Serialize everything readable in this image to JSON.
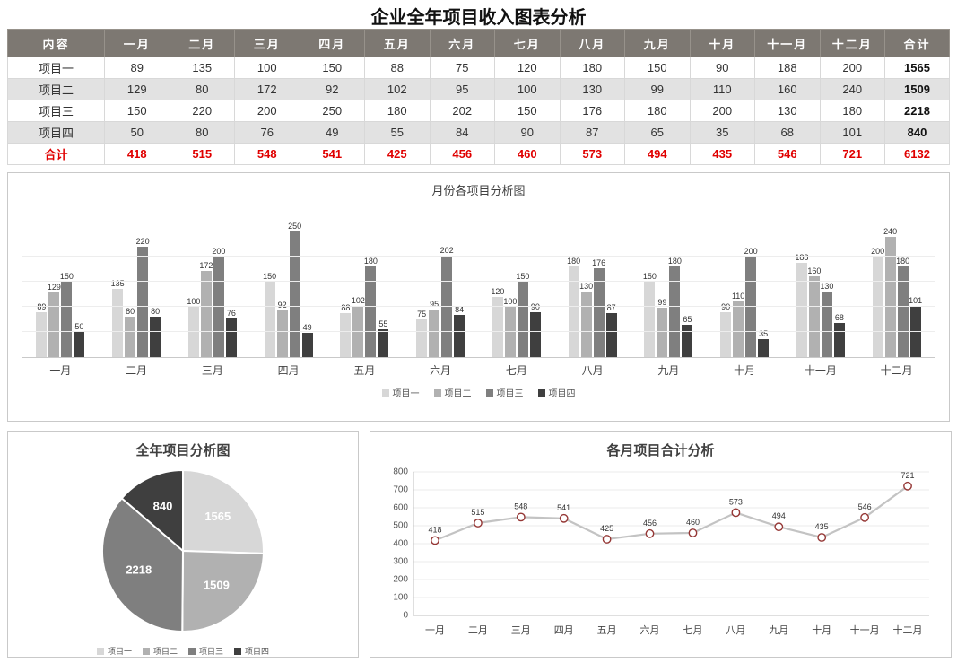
{
  "page_title": "企业全年项目收入图表分析",
  "table": {
    "headers": [
      "内容",
      "一月",
      "二月",
      "三月",
      "四月",
      "五月",
      "六月",
      "七月",
      "八月",
      "九月",
      "十月",
      "十一月",
      "十二月",
      "合计"
    ],
    "rows": [
      {
        "label": "项目一",
        "values": [
          89,
          135,
          100,
          150,
          88,
          75,
          120,
          180,
          150,
          90,
          188,
          200
        ],
        "total": 1565
      },
      {
        "label": "项目二",
        "values": [
          129,
          80,
          172,
          92,
          102,
          95,
          100,
          130,
          99,
          110,
          160,
          240
        ],
        "total": 1509
      },
      {
        "label": "项目三",
        "values": [
          150,
          220,
          200,
          250,
          180,
          202,
          150,
          176,
          180,
          200,
          130,
          180
        ],
        "total": 2218
      },
      {
        "label": "项目四",
        "values": [
          50,
          80,
          76,
          49,
          55,
          84,
          90,
          87,
          65,
          35,
          68,
          101
        ],
        "total": 840
      }
    ],
    "total_row": {
      "label": "合计",
      "values": [
        418,
        515,
        548,
        541,
        425,
        456,
        460,
        573,
        494,
        435,
        546,
        721
      ],
      "total": 6132
    }
  },
  "colors": {
    "header_bg": "#7d7872",
    "alt_row_bg": "#e2e2e2",
    "total_text": "#e00000",
    "series": [
      "#d7d7d7",
      "#b1b1b1",
      "#7f7f7f",
      "#3f3f3f"
    ],
    "line": "#c3c3c3",
    "marker_stroke": "#953735"
  },
  "chart_data": [
    {
      "type": "bar",
      "title": "月份各项目分析图",
      "categories": [
        "一月",
        "二月",
        "三月",
        "四月",
        "五月",
        "六月",
        "七月",
        "八月",
        "九月",
        "十月",
        "十一月",
        "十二月"
      ],
      "series": [
        {
          "name": "项目一",
          "values": [
            89,
            135,
            100,
            150,
            88,
            75,
            120,
            180,
            150,
            90,
            188,
            200
          ]
        },
        {
          "name": "项目二",
          "values": [
            129,
            80,
            172,
            92,
            102,
            95,
            100,
            130,
            99,
            110,
            160,
            240
          ]
        },
        {
          "name": "项目三",
          "values": [
            150,
            220,
            200,
            250,
            180,
            202,
            150,
            176,
            180,
            200,
            130,
            180
          ]
        },
        {
          "name": "项目四",
          "values": [
            50,
            80,
            76,
            49,
            55,
            84,
            90,
            87,
            65,
            35,
            68,
            101
          ]
        }
      ],
      "ylim": [
        0,
        260
      ],
      "ygrid": [
        50,
        100,
        150,
        200,
        250
      ],
      "grid": true,
      "legend_position": "bottom"
    },
    {
      "type": "pie",
      "title": "全年项目分析图",
      "labels": [
        "项目一",
        "项目二",
        "项目三",
        "项目四"
      ],
      "values": [
        1565,
        1509,
        2218,
        840
      ],
      "legend_position": "bottom"
    },
    {
      "type": "line",
      "title": "各月项目合计分析",
      "x": [
        "一月",
        "二月",
        "三月",
        "四月",
        "五月",
        "六月",
        "七月",
        "八月",
        "九月",
        "十月",
        "十一月",
        "十二月"
      ],
      "values": [
        418,
        515,
        548,
        541,
        425,
        456,
        460,
        573,
        494,
        435,
        546,
        721
      ],
      "ylim": [
        0,
        800
      ],
      "yticks": [
        0,
        100,
        200,
        300,
        400,
        500,
        600,
        700,
        800
      ],
      "grid": true
    }
  ]
}
